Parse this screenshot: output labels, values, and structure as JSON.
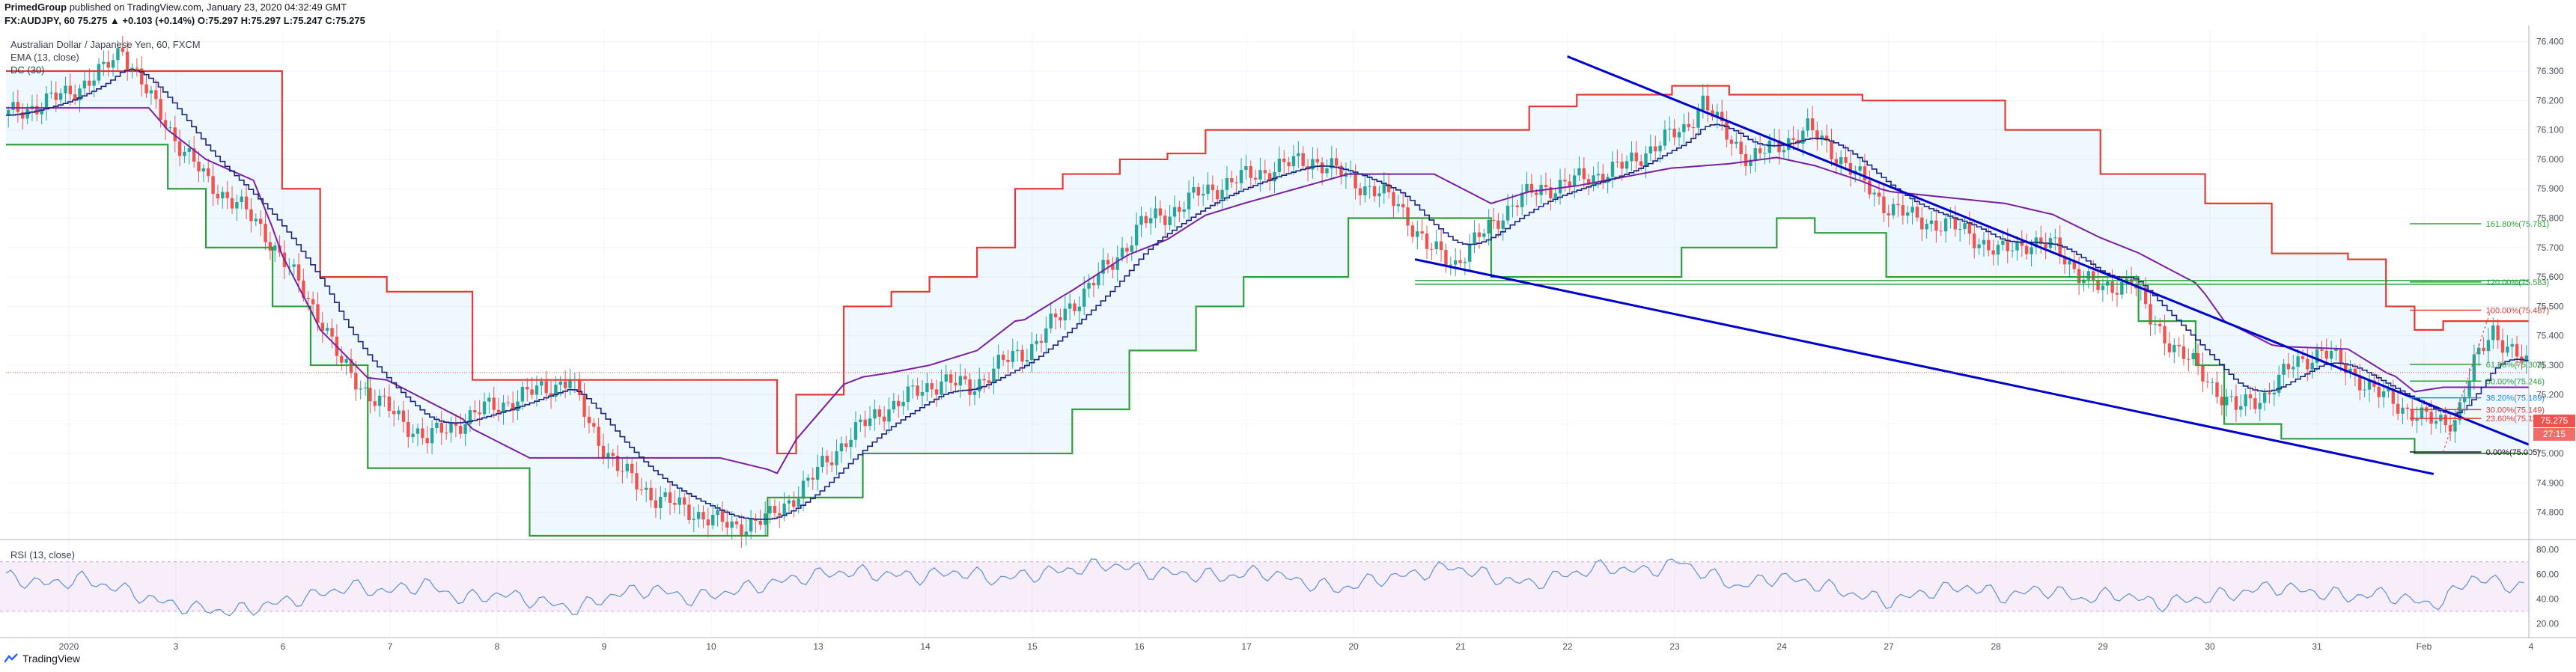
{
  "header": {
    "author": "PrimedGroup",
    "published": "published on TradingView.com, January 23, 2020 04:32:49 GMT",
    "symbol_line": "FX:AUDJPY, 60  75.275 ▲ +0.103 (+0.14%) O:75.297 H:75.297 L:75.247 C:75.275"
  },
  "legend": {
    "series_name": "Australian Dollar / Japanese Yen, 60, FXCM",
    "ema": "EMA (13, close)",
    "dc": "DC (30)",
    "rsi": "RSI (13, close)"
  },
  "price_tags": {
    "last": "75.275",
    "timer": "27:15"
  },
  "footer": {
    "brand": "TradingView"
  },
  "colors": {
    "up": "#26a69a",
    "down": "#ef5350",
    "dc_upper": "#e53935",
    "dc_lower": "#2e9e3e",
    "ema": "#1a237e",
    "dc_mid": "#7b1fa2",
    "trendline": "#0000cc",
    "rsi": "#5b8fd9",
    "fib_green": "#2e9e3e",
    "fib_red": "#e53935",
    "fib_blue": "#1e88e5"
  },
  "chart_data": {
    "type": "candlestick",
    "price_axis": {
      "ticks": [
        "76.400",
        "76.300",
        "76.200",
        "76.100",
        "76.000",
        "75.900",
        "75.800",
        "75.700",
        "75.600",
        "75.500",
        "75.400",
        "75.300",
        "75.200",
        "75.100",
        "75.000",
        "74.900",
        "74.800"
      ],
      "range": [
        74.72,
        76.44
      ]
    },
    "time_axis": {
      "ticks": [
        "2020",
        "3",
        "6",
        "7",
        "8",
        "9",
        "10",
        "13",
        "14",
        "15",
        "16",
        "17",
        "20",
        "21",
        "22",
        "23",
        "24",
        "27",
        "28",
        "29",
        "30",
        "31",
        "Feb",
        "4"
      ]
    },
    "rsi_axis": {
      "ticks": [
        "80.00",
        "60.00",
        "40.00",
        "20.00"
      ],
      "range": [
        10,
        85
      ],
      "band": [
        30,
        70
      ]
    },
    "price_path": [
      [
        0,
        76.15
      ],
      [
        12,
        76.22
      ],
      [
        20,
        76.3
      ],
      [
        24,
        76.38
      ],
      [
        30,
        76.2
      ],
      [
        36,
        76.05
      ],
      [
        42,
        75.92
      ],
      [
        48,
        75.85
      ],
      [
        54,
        75.75
      ],
      [
        60,
        75.6
      ],
      [
        66,
        75.45
      ],
      [
        70,
        75.3
      ],
      [
        76,
        75.2
      ],
      [
        82,
        75.12
      ],
      [
        88,
        75.05
      ],
      [
        94,
        75.1
      ],
      [
        100,
        75.15
      ],
      [
        106,
        75.18
      ],
      [
        112,
        75.22
      ],
      [
        118,
        75.25
      ],
      [
        122,
        75.1
      ],
      [
        128,
        74.95
      ],
      [
        136,
        74.85
      ],
      [
        144,
        74.8
      ],
      [
        152,
        74.75
      ],
      [
        160,
        74.78
      ],
      [
        168,
        74.9
      ],
      [
        176,
        75.05
      ],
      [
        184,
        75.15
      ],
      [
        190,
        75.2
      ],
      [
        196,
        75.25
      ],
      [
        202,
        75.22
      ],
      [
        208,
        75.3
      ],
      [
        214,
        75.35
      ],
      [
        220,
        75.45
      ],
      [
        226,
        75.55
      ],
      [
        232,
        75.65
      ],
      [
        238,
        75.78
      ],
      [
        244,
        75.82
      ],
      [
        250,
        75.88
      ],
      [
        256,
        75.92
      ],
      [
        262,
        75.95
      ],
      [
        268,
        75.98
      ],
      [
        274,
        76.0
      ],
      [
        280,
        75.95
      ],
      [
        286,
        75.9
      ],
      [
        292,
        75.85
      ],
      [
        298,
        75.7
      ],
      [
        304,
        75.65
      ],
      [
        310,
        75.75
      ],
      [
        316,
        75.85
      ],
      [
        322,
        75.9
      ],
      [
        328,
        75.92
      ],
      [
        334,
        75.95
      ],
      [
        340,
        75.98
      ],
      [
        346,
        76.05
      ],
      [
        352,
        76.1
      ],
      [
        356,
        76.2
      ],
      [
        360,
        76.1
      ],
      [
        366,
        76.0
      ],
      [
        372,
        76.05
      ],
      [
        378,
        76.1
      ],
      [
        382,
        76.05
      ],
      [
        388,
        75.95
      ],
      [
        394,
        75.85
      ],
      [
        400,
        75.8
      ],
      [
        406,
        75.78
      ],
      [
        412,
        75.75
      ],
      [
        418,
        75.68
      ],
      [
        424,
        75.72
      ],
      [
        430,
        75.7
      ],
      [
        436,
        75.6
      ],
      [
        440,
        75.55
      ],
      [
        446,
        75.6
      ],
      [
        450,
        75.45
      ],
      [
        456,
        75.35
      ],
      [
        462,
        75.25
      ],
      [
        468,
        75.15
      ],
      [
        474,
        75.2
      ],
      [
        480,
        75.3
      ],
      [
        486,
        75.35
      ],
      [
        492,
        75.28
      ],
      [
        498,
        75.2
      ],
      [
        504,
        75.15
      ],
      [
        510,
        75.1
      ],
      [
        514,
        75.12
      ],
      [
        518,
        75.3
      ],
      [
        522,
        75.42
      ],
      [
        526,
        75.35
      ],
      [
        530,
        75.28
      ]
    ],
    "donchian_upper": [
      [
        0,
        76.3
      ],
      [
        30,
        76.3
      ],
      [
        52,
        76.3
      ],
      [
        58,
        75.9
      ],
      [
        66,
        75.6
      ],
      [
        80,
        75.55
      ],
      [
        98,
        75.25
      ],
      [
        150,
        75.25
      ],
      [
        162,
        75.0
      ],
      [
        166,
        75.2
      ],
      [
        176,
        75.5
      ],
      [
        186,
        75.55
      ],
      [
        194,
        75.6
      ],
      [
        204,
        75.7
      ],
      [
        212,
        75.9
      ],
      [
        222,
        75.95
      ],
      [
        234,
        76.0
      ],
      [
        244,
        76.02
      ],
      [
        252,
        76.1
      ],
      [
        312,
        76.1
      ],
      [
        320,
        76.18
      ],
      [
        330,
        76.22
      ],
      [
        350,
        76.25
      ],
      [
        362,
        76.22
      ],
      [
        390,
        76.2
      ],
      [
        420,
        76.1
      ],
      [
        440,
        75.95
      ],
      [
        462,
        75.85
      ],
      [
        476,
        75.68
      ],
      [
        492,
        75.66
      ],
      [
        500,
        75.5
      ],
      [
        506,
        75.42
      ],
      [
        512,
        75.45
      ],
      [
        522,
        75.45
      ],
      [
        530,
        75.45
      ]
    ],
    "donchian_lower": [
      [
        0,
        76.05
      ],
      [
        30,
        76.05
      ],
      [
        34,
        75.9
      ],
      [
        42,
        75.7
      ],
      [
        56,
        75.5
      ],
      [
        64,
        75.3
      ],
      [
        76,
        74.95
      ],
      [
        96,
        74.95
      ],
      [
        110,
        74.72
      ],
      [
        150,
        74.72
      ],
      [
        160,
        74.85
      ],
      [
        180,
        75.0
      ],
      [
        192,
        75.0
      ],
      [
        214,
        75.0
      ],
      [
        224,
        75.15
      ],
      [
        236,
        75.35
      ],
      [
        250,
        75.5
      ],
      [
        260,
        75.6
      ],
      [
        282,
        75.8
      ],
      [
        300,
        75.8
      ],
      [
        312,
        75.6
      ],
      [
        330,
        75.6
      ],
      [
        352,
        75.7
      ],
      [
        372,
        75.8
      ],
      [
        380,
        75.75
      ],
      [
        395,
        75.6
      ],
      [
        412,
        75.6
      ],
      [
        430,
        75.6
      ],
      [
        448,
        75.45
      ],
      [
        460,
        75.3
      ],
      [
        466,
        75.1
      ],
      [
        478,
        75.05
      ],
      [
        502,
        75.05
      ],
      [
        506,
        75.0
      ],
      [
        512,
        75.0
      ],
      [
        530,
        75.0
      ]
    ],
    "fib_levels": [
      {
        "label": "161.80%(75.781)",
        "value": 75.781
      },
      {
        "label": "120.00%(75.583)",
        "value": 75.583
      },
      {
        "label": "100.00%(75.487)",
        "value": 75.487
      },
      {
        "label": "61.80%(75.303)",
        "value": 75.303
      },
      {
        "label": "50.00%(75.246)",
        "value": 75.246
      },
      {
        "label": "38.20%(75.189)",
        "value": 75.189
      },
      {
        "label": "30.00%(75.149)",
        "value": 75.149
      },
      {
        "label": "23.60%(75.119)",
        "value": 75.119
      },
      {
        "label": "0.00%(75.005)",
        "value": 75.005
      }
    ],
    "horizontal_level": 75.583,
    "trendlines": [
      {
        "from": [
          328,
          76.35
        ],
        "to": [
          530,
          75.03
        ]
      },
      {
        "from": [
          296,
          75.66
        ],
        "to": [
          510,
          74.93
        ]
      }
    ],
    "rsi": [
      [
        0,
        58
      ],
      [
        8,
        52
      ],
      [
        16,
        56
      ],
      [
        24,
        48
      ],
      [
        32,
        38
      ],
      [
        40,
        32
      ],
      [
        48,
        30
      ],
      [
        56,
        36
      ],
      [
        64,
        42
      ],
      [
        72,
        50
      ],
      [
        80,
        46
      ],
      [
        88,
        52
      ],
      [
        96,
        40
      ],
      [
        104,
        44
      ],
      [
        112,
        38
      ],
      [
        120,
        32
      ],
      [
        128,
        44
      ],
      [
        136,
        48
      ],
      [
        144,
        40
      ],
      [
        152,
        46
      ],
      [
        160,
        52
      ],
      [
        168,
        58
      ],
      [
        176,
        62
      ],
      [
        184,
        60
      ],
      [
        192,
        58
      ],
      [
        200,
        62
      ],
      [
        208,
        56
      ],
      [
        216,
        60
      ],
      [
        224,
        64
      ],
      [
        232,
        68
      ],
      [
        240,
        62
      ],
      [
        248,
        60
      ],
      [
        256,
        58
      ],
      [
        264,
        62
      ],
      [
        272,
        54
      ],
      [
        280,
        48
      ],
      [
        288,
        56
      ],
      [
        296,
        60
      ],
      [
        304,
        66
      ],
      [
        312,
        58
      ],
      [
        320,
        52
      ],
      [
        328,
        60
      ],
      [
        336,
        66
      ],
      [
        344,
        62
      ],
      [
        352,
        70
      ],
      [
        356,
        62
      ],
      [
        364,
        50
      ],
      [
        372,
        58
      ],
      [
        380,
        52
      ],
      [
        388,
        44
      ],
      [
        396,
        38
      ],
      [
        404,
        46
      ],
      [
        412,
        50
      ],
      [
        420,
        42
      ],
      [
        428,
        48
      ],
      [
        436,
        40
      ],
      [
        444,
        44
      ],
      [
        452,
        36
      ],
      [
        460,
        40
      ],
      [
        468,
        44
      ],
      [
        476,
        50
      ],
      [
        484,
        46
      ],
      [
        492,
        42
      ],
      [
        500,
        44
      ],
      [
        508,
        36
      ],
      [
        512,
        38
      ],
      [
        518,
        58
      ],
      [
        524,
        52
      ],
      [
        530,
        50
      ]
    ]
  }
}
